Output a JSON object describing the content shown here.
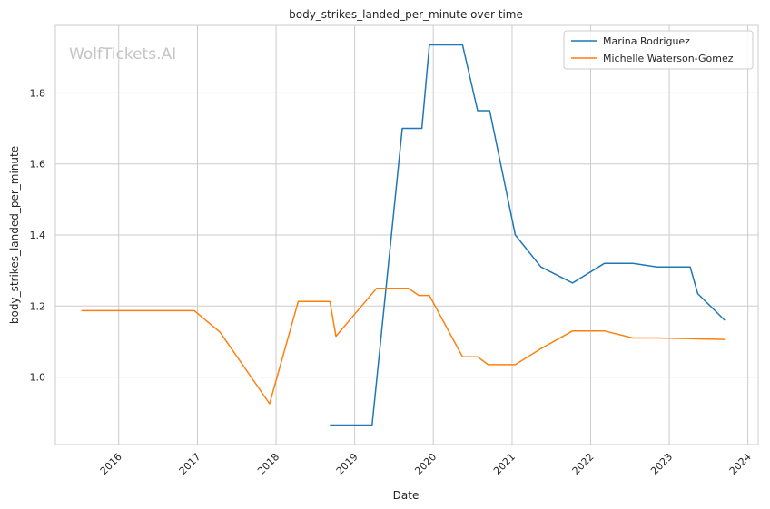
{
  "chart_data": {
    "type": "line",
    "title": "body_strikes_landed_per_minute over time",
    "xlabel": "Date",
    "ylabel": "body_strikes_landed_per_minute",
    "watermark": "WolfTickets.AI",
    "x_ticks": [
      "2016",
      "2017",
      "2018",
      "2019",
      "2020",
      "2021",
      "2022",
      "2023",
      "2024"
    ],
    "y_ticks": [
      "1.0",
      "1.2",
      "1.4",
      "1.6",
      "1.8"
    ],
    "xlim": [
      "2015-03-13",
      "2024-02-18"
    ],
    "ylim": [
      0.81,
      1.99
    ],
    "grid": true,
    "legend_position": "top-right",
    "series": [
      {
        "name": "Marina Rodriguez",
        "color": "#1f77b4",
        "points": [
          [
            "2018-09-08",
            0.865
          ],
          [
            "2019-03-23",
            0.865
          ],
          [
            "2019-08-10",
            1.7
          ],
          [
            "2019-11-09",
            1.7
          ],
          [
            "2019-12-14",
            1.935
          ],
          [
            "2020-05-16",
            1.935
          ],
          [
            "2020-07-25",
            1.75
          ],
          [
            "2020-09-19",
            1.75
          ],
          [
            "2021-01-16",
            1.4
          ],
          [
            "2021-05-15",
            1.31
          ],
          [
            "2021-10-09",
            1.265
          ],
          [
            "2022-03-05",
            1.32
          ],
          [
            "2022-07-16",
            1.32
          ],
          [
            "2022-11-05",
            1.31
          ],
          [
            "2023-04-08",
            1.31
          ],
          [
            "2023-05-13",
            1.235
          ],
          [
            "2023-09-16",
            1.16
          ]
        ]
      },
      {
        "name": "Michelle Waterson-Gomez",
        "color": "#ff7f0e",
        "points": [
          [
            "2015-07-12",
            1.187
          ],
          [
            "2016-12-17",
            1.187
          ],
          [
            "2017-04-15",
            1.127
          ],
          [
            "2017-12-02",
            0.925
          ],
          [
            "2018-04-14",
            1.213
          ],
          [
            "2018-09-08",
            1.213
          ],
          [
            "2018-10-06",
            1.115
          ],
          [
            "2019-04-13",
            1.25
          ],
          [
            "2019-09-07",
            1.25
          ],
          [
            "2019-10-26",
            1.23
          ],
          [
            "2019-12-14",
            1.23
          ],
          [
            "2020-05-16",
            1.057
          ],
          [
            "2020-07-25",
            1.057
          ],
          [
            "2020-09-12",
            1.035
          ],
          [
            "2021-01-16",
            1.035
          ],
          [
            "2021-05-15",
            1.08
          ],
          [
            "2021-10-09",
            1.13
          ],
          [
            "2022-03-05",
            1.13
          ],
          [
            "2022-07-16",
            1.11
          ],
          [
            "2022-11-05",
            1.11
          ],
          [
            "2023-04-08",
            1.108
          ],
          [
            "2023-09-16",
            1.106
          ]
        ]
      }
    ]
  }
}
